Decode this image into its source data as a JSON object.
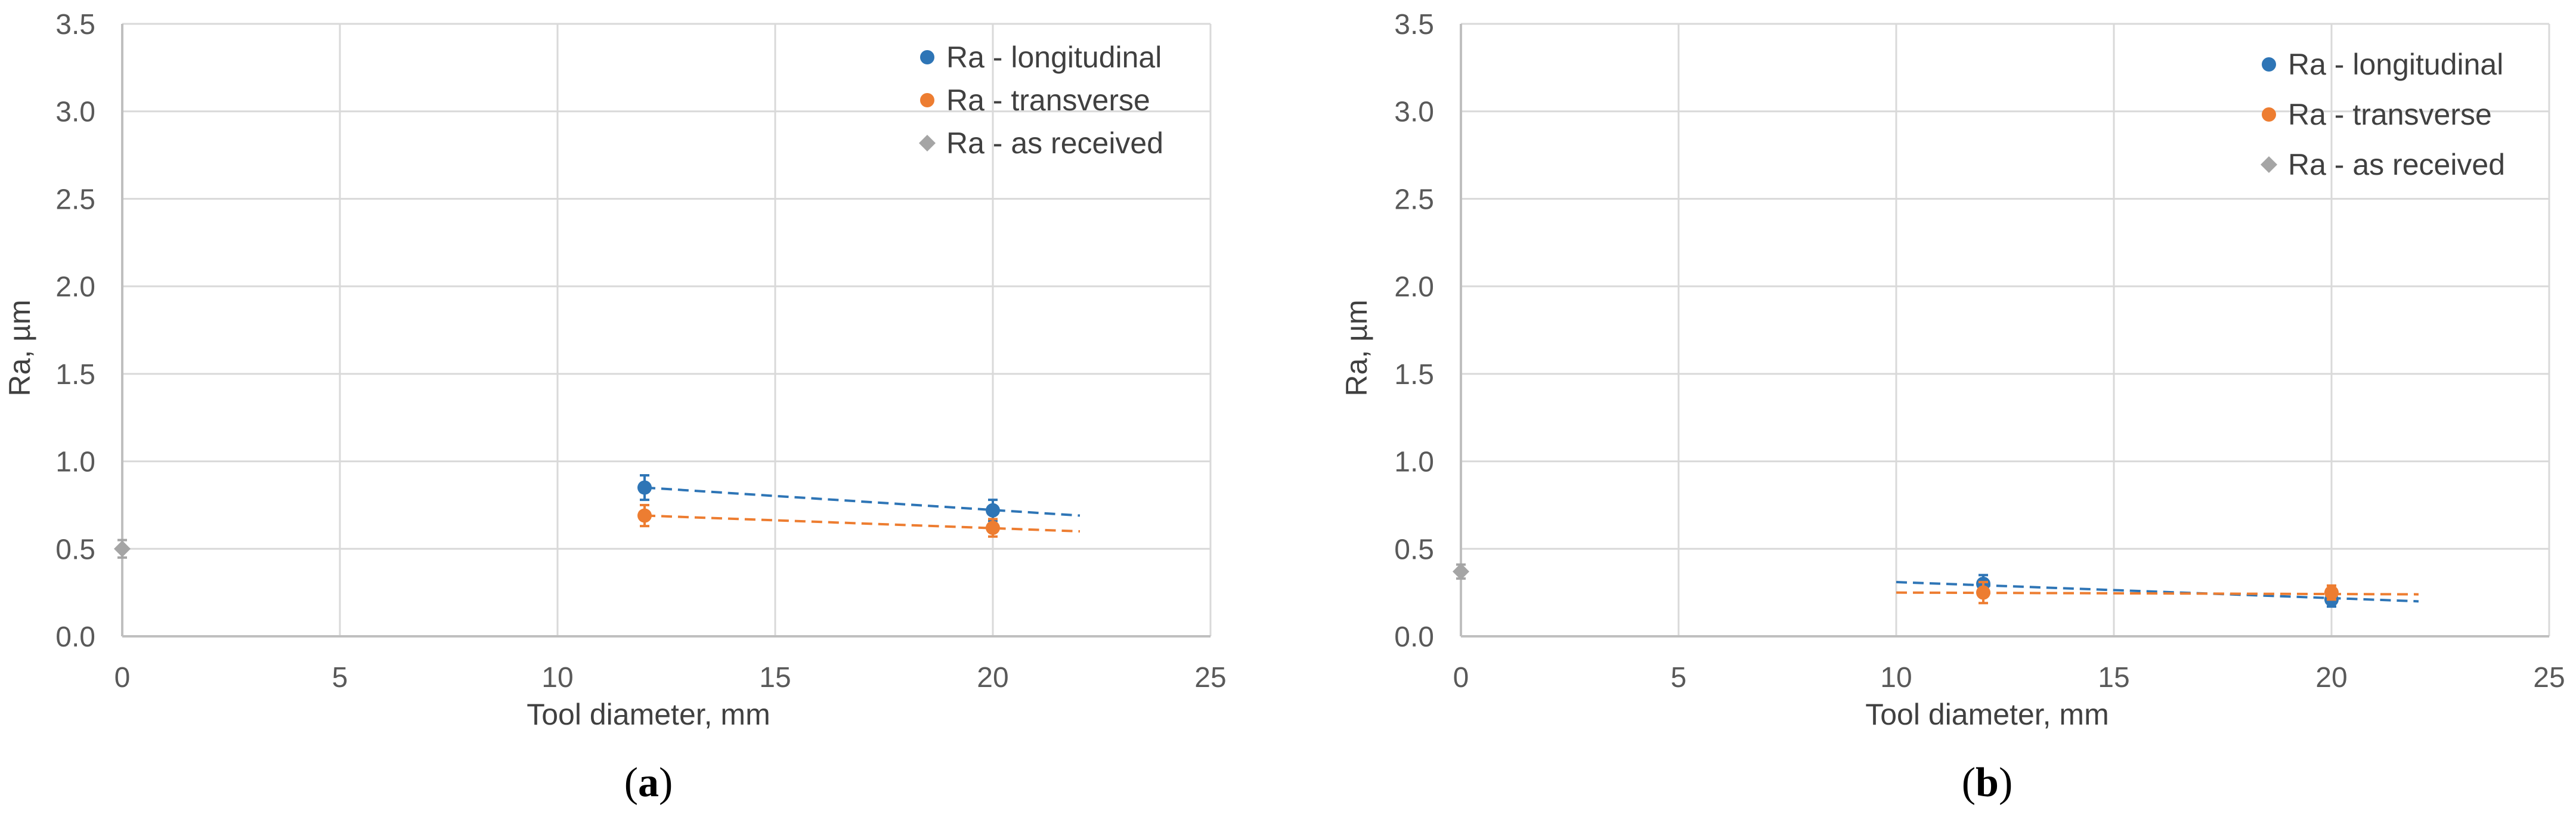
{
  "chart_data": [
    {
      "panel_label": "a",
      "type": "scatter",
      "xlabel": "Tool diameter,  mm",
      "ylabel": "Ra,  µm",
      "xlim": [
        0,
        25
      ],
      "ylim": [
        0,
        3.5
      ],
      "xticks": [
        0,
        5,
        10,
        15,
        20,
        25
      ],
      "yticks": [
        0.0,
        0.5,
        1.0,
        1.5,
        2.0,
        2.5,
        3.0,
        3.5
      ],
      "grid": true,
      "legend_position": "top-right",
      "series": [
        {
          "name": "Ra - longitudinal",
          "color": "#2E75B6",
          "marker": "circle",
          "points": [
            {
              "x": 12,
              "y": 0.85,
              "err": 0.07
            },
            {
              "x": 20,
              "y": 0.72,
              "err": 0.06
            }
          ],
          "trendline": {
            "x": [
              12,
              22
            ],
            "y": [
              0.85,
              0.69
            ]
          }
        },
        {
          "name": "Ra - transverse",
          "color": "#ED7D31",
          "marker": "circle",
          "points": [
            {
              "x": 12,
              "y": 0.69,
              "err": 0.06
            },
            {
              "x": 20,
              "y": 0.62,
              "err": 0.05
            }
          ],
          "trendline": {
            "x": [
              12,
              22
            ],
            "y": [
              0.69,
              0.6
            ]
          }
        },
        {
          "name": "Ra - as received",
          "color": "#A5A5A5",
          "marker": "diamond",
          "points": [
            {
              "x": 0,
              "y": 0.5,
              "err": 0.05
            }
          ]
        }
      ]
    },
    {
      "panel_label": "b",
      "type": "scatter",
      "xlabel": "Tool diameter,  mm",
      "ylabel": "Ra,  µm",
      "xlim": [
        0,
        25
      ],
      "ylim": [
        0,
        3.5
      ],
      "xticks": [
        0,
        5,
        10,
        15,
        20,
        25
      ],
      "yticks": [
        0.0,
        0.5,
        1.0,
        1.5,
        2.0,
        2.5,
        3.0,
        3.5
      ],
      "grid": true,
      "legend_position": "top-right",
      "series": [
        {
          "name": "Ra - longitudinal",
          "color": "#2E75B6",
          "marker": "circle",
          "points": [
            {
              "x": 12,
              "y": 0.3,
              "err": 0.05
            },
            {
              "x": 20,
              "y": 0.21,
              "err": 0.04
            }
          ],
          "trendline": {
            "x": [
              10,
              22
            ],
            "y": [
              0.31,
              0.2
            ]
          }
        },
        {
          "name": "Ra - transverse",
          "color": "#ED7D31",
          "marker": "circle",
          "points": [
            {
              "x": 12,
              "y": 0.25,
              "err": 0.06
            },
            {
              "x": 20,
              "y": 0.25,
              "err": 0.04
            }
          ],
          "trendline": {
            "x": [
              10,
              22
            ],
            "y": [
              0.25,
              0.24
            ]
          }
        },
        {
          "name": "Ra - as received",
          "color": "#A5A5A5",
          "marker": "diamond",
          "points": [
            {
              "x": 0,
              "y": 0.37,
              "err": 0.04
            }
          ]
        }
      ]
    }
  ],
  "styles": {
    "grid_color": "#D9D9D9",
    "axis_color": "#BFBFBF"
  }
}
